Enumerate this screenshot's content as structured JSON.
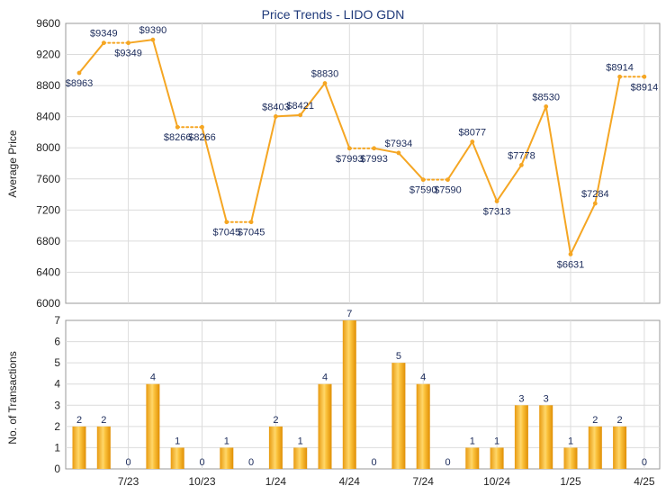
{
  "chart_data": [
    {
      "type": "line",
      "title": "Price Trends - LIDO GDN",
      "ylabel": "Average Price",
      "ylim": [
        6000,
        9600
      ],
      "yticks": [
        6000,
        6400,
        6800,
        7200,
        7600,
        8000,
        8400,
        8800,
        9200,
        9600
      ],
      "xticks": [
        "7/23",
        "10/23",
        "1/24",
        "4/24",
        "7/24",
        "10/24",
        "1/25",
        "4/25"
      ],
      "grid": true,
      "series_color": "#f5a623",
      "points": [
        {
          "y": 8963,
          "label": "$8963",
          "segment_before": "solid"
        },
        {
          "y": 9349,
          "label": "$9349",
          "segment_before": "solid"
        },
        {
          "y": 9349,
          "label": "$9349",
          "segment_before": "dotted"
        },
        {
          "y": 9390,
          "label": "$9390",
          "segment_before": "solid"
        },
        {
          "y": 8266,
          "label": "$8266",
          "segment_before": "solid"
        },
        {
          "y": 8266,
          "label": "$8266",
          "segment_before": "dotted"
        },
        {
          "y": 7045,
          "label": "$7045",
          "segment_before": "solid"
        },
        {
          "y": 7045,
          "label": "$7045",
          "segment_before": "dotted"
        },
        {
          "y": 8403,
          "label": "$8403",
          "segment_before": "solid"
        },
        {
          "y": 8421,
          "label": "$8421",
          "segment_before": "solid"
        },
        {
          "y": 8830,
          "label": "$8830",
          "segment_before": "solid"
        },
        {
          "y": 7993,
          "label": "$7993",
          "segment_before": "solid"
        },
        {
          "y": 7993,
          "label": "$7993",
          "segment_before": "dotted"
        },
        {
          "y": 7934,
          "label": "$7934",
          "segment_before": "solid"
        },
        {
          "y": 7590,
          "label": "$7590",
          "segment_before": "solid"
        },
        {
          "y": 7590,
          "label": "$7590",
          "segment_before": "dotted"
        },
        {
          "y": 8077,
          "label": "$8077",
          "segment_before": "solid"
        },
        {
          "y": 7313,
          "label": "$7313",
          "segment_before": "solid"
        },
        {
          "y": 7778,
          "label": "$7778",
          "segment_before": "solid"
        },
        {
          "y": 8530,
          "label": "$8530",
          "segment_before": "solid"
        },
        {
          "y": 6631,
          "label": "$6631",
          "segment_before": "solid"
        },
        {
          "y": 7284,
          "label": "$7284",
          "segment_before": "solid"
        },
        {
          "y": 8914,
          "label": "$8914",
          "segment_before": "solid"
        },
        {
          "y": 8914,
          "label": "$8914",
          "segment_before": "dotted"
        }
      ]
    },
    {
      "type": "bar",
      "ylabel": "No. of Transactions",
      "ylim": [
        0,
        7
      ],
      "yticks": [
        0,
        1,
        2,
        3,
        4,
        5,
        6,
        7
      ],
      "xticks": [
        "7/23",
        "10/23",
        "1/24",
        "4/24",
        "7/24",
        "10/24",
        "1/25",
        "4/25"
      ],
      "grid": true,
      "values": [
        2,
        2,
        0,
        4,
        1,
        0,
        1,
        0,
        2,
        1,
        4,
        7,
        0,
        5,
        4,
        0,
        1,
        1,
        3,
        3,
        1,
        2,
        2,
        0
      ]
    }
  ]
}
